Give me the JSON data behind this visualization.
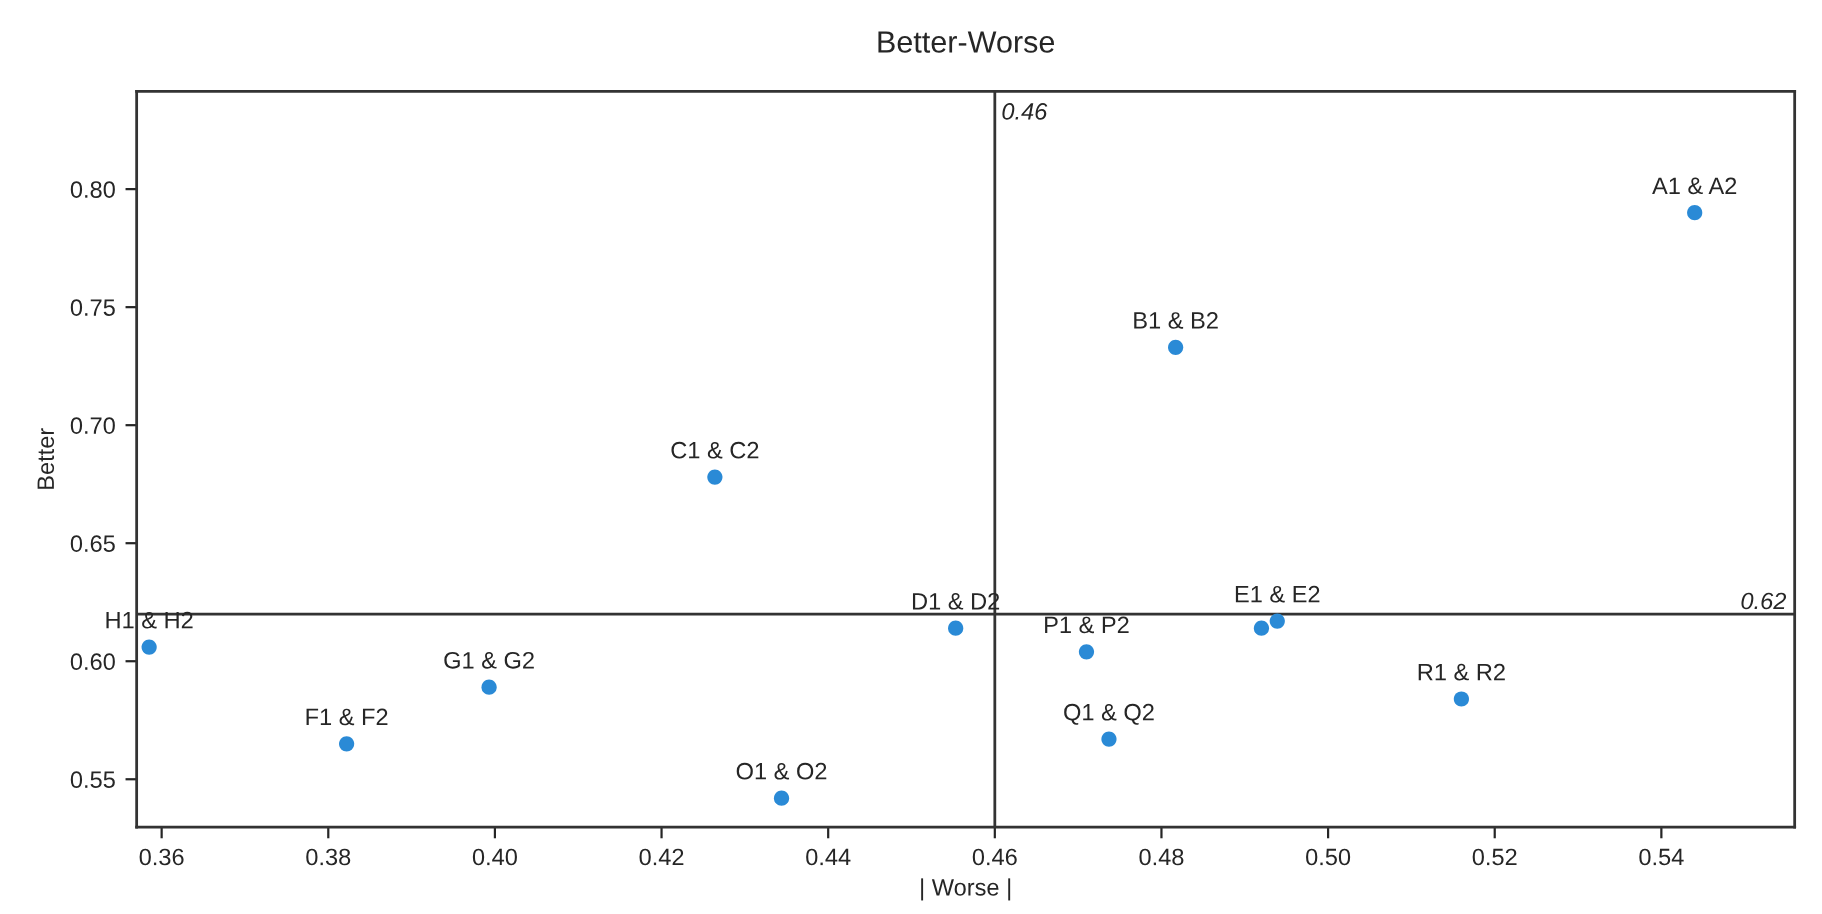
{
  "chart_data": {
    "type": "scatter",
    "title": "Better-Worse",
    "xlabel": "| Worse |",
    "ylabel": "Better",
    "x": [
      0.3585,
      0.3822,
      0.3993,
      0.4264,
      0.4344,
      0.4553,
      0.4817,
      0.471,
      0.4737,
      0.4939,
      0.492,
      0.516,
      0.544
    ],
    "series": [
      {
        "color": "#2a8ad6",
        "values": [
          0.606,
          0.565,
          0.589,
          0.678,
          0.542,
          0.614,
          0.733,
          0.604,
          0.567,
          0.617,
          0.614,
          0.584,
          0.79
        ]
      }
    ],
    "annotations": [
      {
        "text": "H1 & H2",
        "x": 0.3585,
        "y": 0.606
      },
      {
        "text": "F1 & F2",
        "x": 0.3822,
        "y": 0.565
      },
      {
        "text": "G1 & G2",
        "x": 0.3993,
        "y": 0.589
      },
      {
        "text": "C1 & C2",
        "x": 0.4264,
        "y": 0.678
      },
      {
        "text": "O1 & O2",
        "x": 0.4344,
        "y": 0.542
      },
      {
        "text": "D1 & D2",
        "x": 0.4553,
        "y": 0.614
      },
      {
        "text": "B1 & B2",
        "x": 0.4817,
        "y": 0.733
      },
      {
        "text": "P1 & P2",
        "x": 0.471,
        "y": 0.604
      },
      {
        "text": "Q1 & Q2",
        "x": 0.4737,
        "y": 0.567
      },
      {
        "text": "E1 & E2",
        "x": 0.4939,
        "y": 0.617
      },
      {
        "text": "R1 & R2",
        "x": 0.516,
        "y": 0.584
      },
      {
        "text": "A1 & A2",
        "x": 0.544,
        "y": 0.79
      }
    ],
    "xlim": [
      0.357,
      0.556
    ],
    "ylim": [
      0.5297,
      0.8414
    ],
    "xticks": [
      0.36,
      0.38,
      {
        "value": 0.4,
        "label": "0.40"
      },
      0.42,
      0.44,
      0.46,
      0.48,
      {
        "value": 0.5,
        "label": "0.50"
      },
      0.52,
      0.54
    ],
    "yticks": [
      0.55,
      {
        "value": 0.6,
        "label": "0.60"
      },
      0.65,
      {
        "value": 0.7,
        "label": "0.70"
      },
      0.75,
      {
        "value": 0.8,
        "label": "0.80"
      }
    ],
    "ref_lines": [
      {
        "axis": "x",
        "value": 0.46,
        "label": "0.46",
        "color": "#333333"
      },
      {
        "axis": "y",
        "value": 0.62,
        "label": "0.62",
        "color": "#333333"
      }
    ],
    "marker": "circle"
  }
}
